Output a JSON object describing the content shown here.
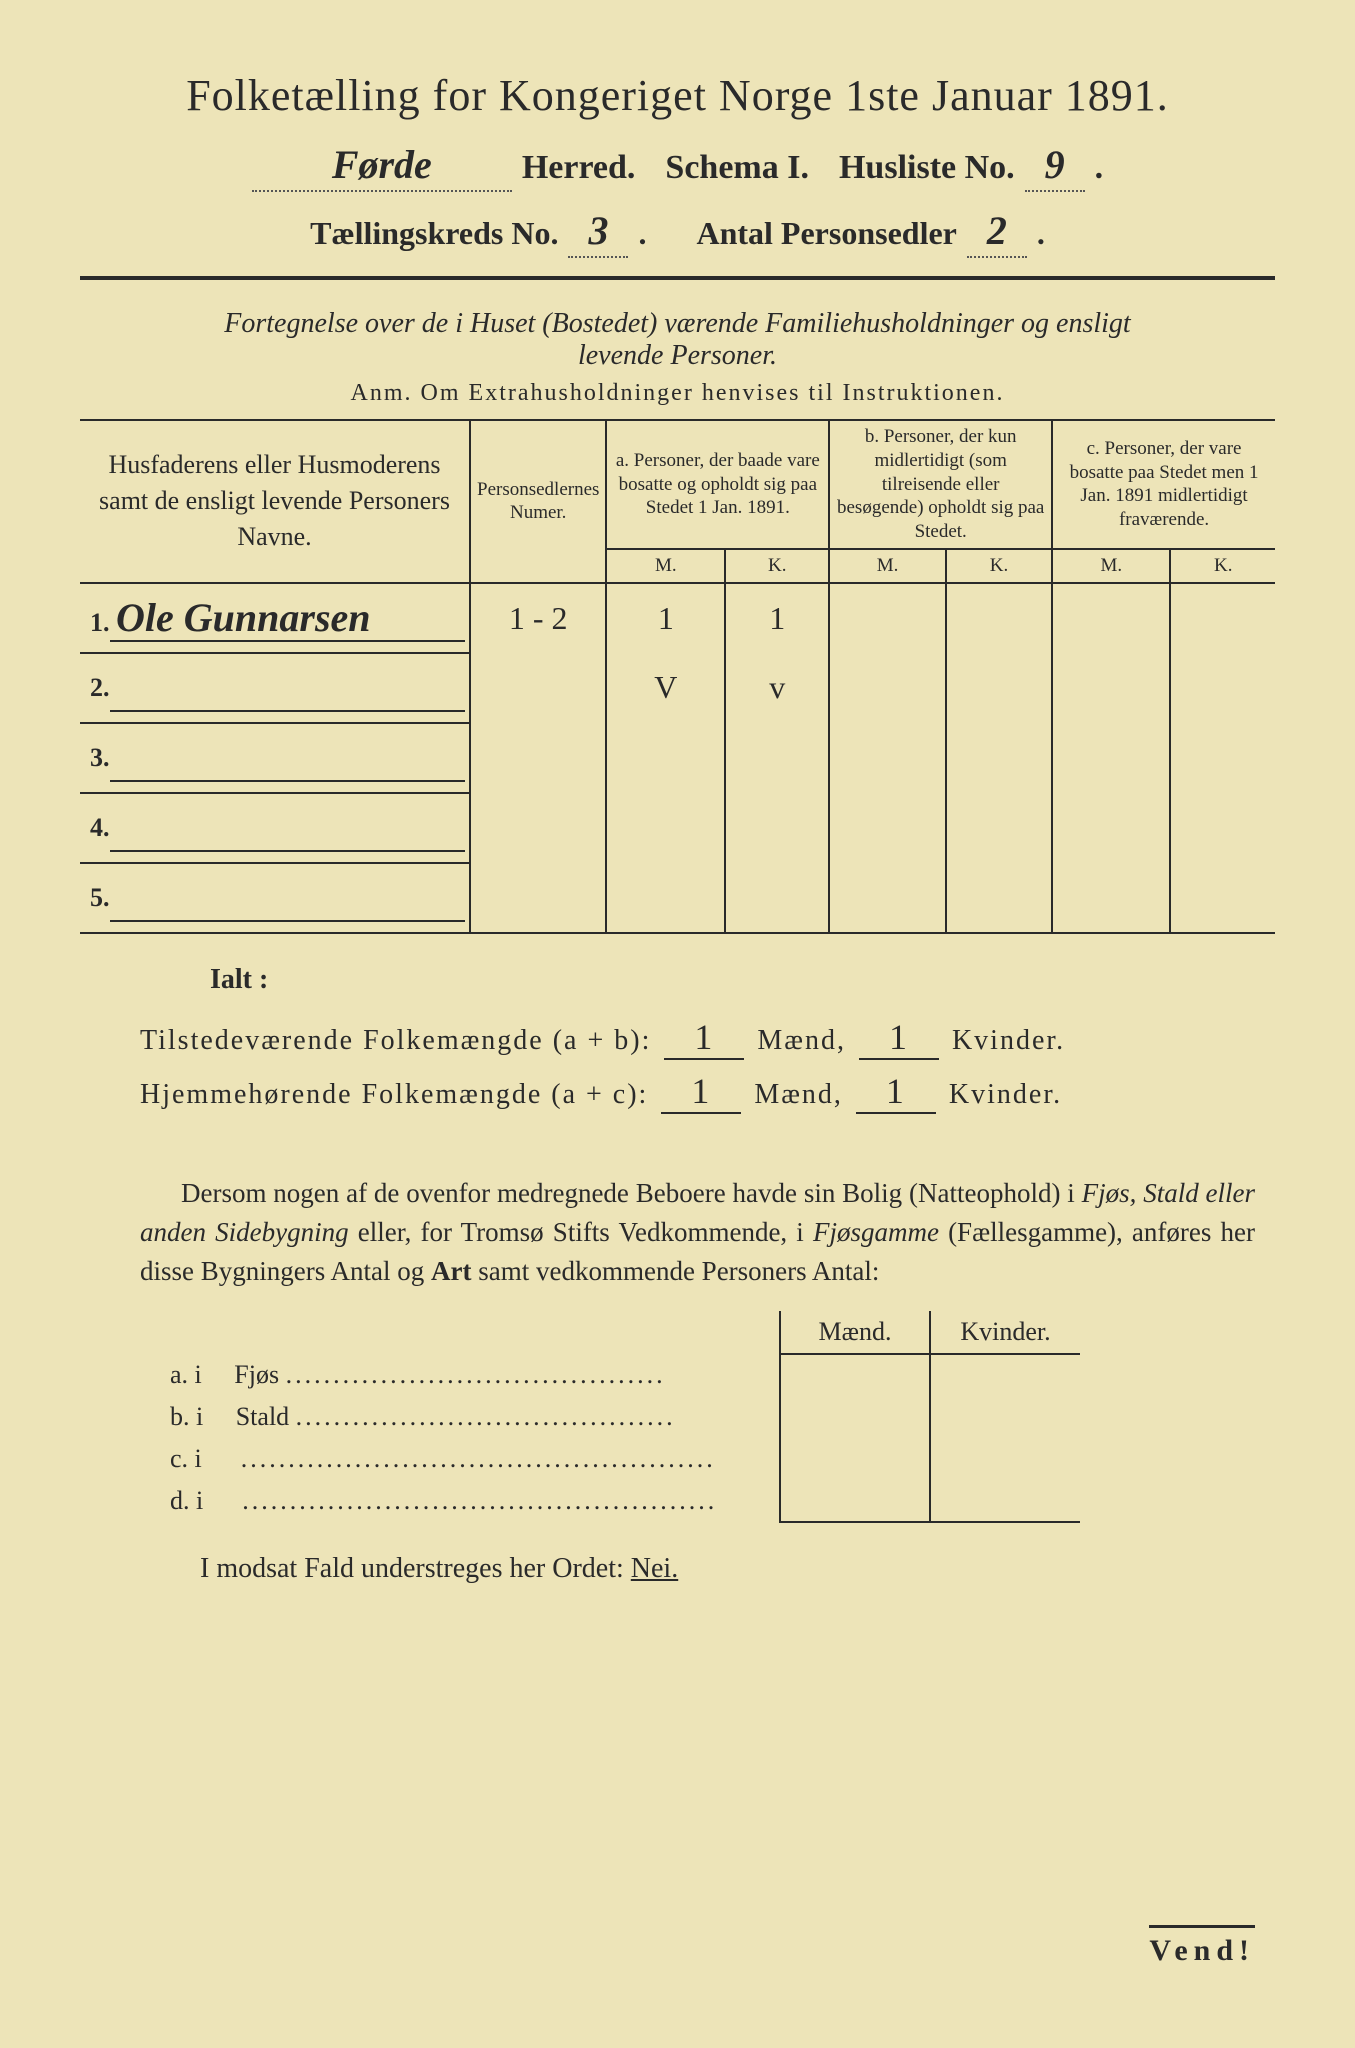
{
  "title": "Folketælling for Kongeriget Norge 1ste Januar 1891.",
  "header": {
    "herred_value": "Førde",
    "herred_label": "Herred.",
    "schema_label": "Schema I.",
    "husliste_label": "Husliste No.",
    "husliste_value": "9",
    "kreds_label": "Tællingskreds No.",
    "kreds_value": "3",
    "antal_label": "Antal Personsedler",
    "antal_value": "2"
  },
  "subtitle_line1": "Fortegnelse over de i Huset (Bostedet) værende Familiehusholdninger og ensligt",
  "subtitle_line2": "levende Personer.",
  "anm_text": "Anm.  Om Extrahusholdninger henvises til Instruktionen.",
  "table_headers": {
    "name": "Husfaderens eller Husmoderens samt de ensligt levende Personers Navne.",
    "person": "Personsedlernes Numer.",
    "a": "a.\nPersoner, der baade vare bosatte og opholdt sig paa Stedet 1 Jan. 1891.",
    "b": "b.\nPersoner, der kun midlertidigt (som tilreisende eller besøgende) opholdt sig paa Stedet.",
    "c": "c.\nPersoner, der vare bosatte paa Stedet men 1 Jan. 1891 midlertidigt fraværende.",
    "M": "M.",
    "K": "K."
  },
  "rows": [
    {
      "num": "1.",
      "name": "Ole Gunnarsen",
      "numer": "1 - 2",
      "aM": "1",
      "aK": "1",
      "bM": "",
      "bK": "",
      "cM": "",
      "cK": ""
    },
    {
      "num": "2.",
      "name": "",
      "numer": "",
      "aM": "V",
      "aK": "v",
      "bM": "",
      "bK": "",
      "cM": "",
      "cK": ""
    },
    {
      "num": "3.",
      "name": "",
      "numer": "",
      "aM": "",
      "aK": "",
      "bM": "",
      "bK": "",
      "cM": "",
      "cK": ""
    },
    {
      "num": "4.",
      "name": "",
      "numer": "",
      "aM": "",
      "aK": "",
      "bM": "",
      "bK": "",
      "cM": "",
      "cK": ""
    },
    {
      "num": "5.",
      "name": "",
      "numer": "",
      "aM": "",
      "aK": "",
      "bM": "",
      "bK": "",
      "cM": "",
      "cK": ""
    }
  ],
  "ialt": "Ialt :",
  "totals": {
    "t1_label": "Tilstedeværende Folkemængde (a + b):",
    "t1_m": "1",
    "t1_k": "1",
    "t2_label": "Hjemmehørende Folkemængde (a + c):",
    "t2_m": "1",
    "t2_k": "1",
    "maend": "Mænd,",
    "kvinder": "Kvinder."
  },
  "paragraph": "Dersom nogen af de ovenfor medregnede Beboere havde sin Bolig (Natteophold) i Fjøs, Stald eller anden Sidebygning eller, for Tromsø Stifts Vedkommende, i Fjøsgamme (Fællesgamme), anføres her disse Bygningers Antal og Art samt vedkommende Personers Antal:",
  "bottom_headers": {
    "m": "Mænd.",
    "k": "Kvinder."
  },
  "bottom_rows": [
    {
      "lab": "a.  i",
      "name": "Fjøs"
    },
    {
      "lab": "b.  i",
      "name": "Stald"
    },
    {
      "lab": "c.  i",
      "name": ""
    },
    {
      "lab": "d.  i",
      "name": ""
    }
  ],
  "nei_text": "I modsat Fald understreges her Ordet:",
  "nei_word": "Nei.",
  "vend": "Vend!"
}
